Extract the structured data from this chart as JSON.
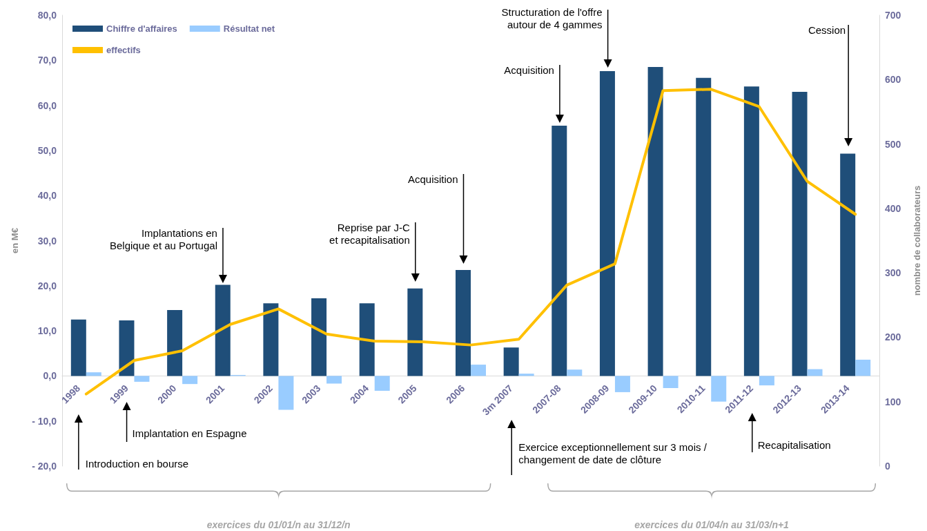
{
  "chart_data": {
    "type": "bar",
    "categories": [
      "1998",
      "1999",
      "2000",
      "2001",
      "2002",
      "2003",
      "2004",
      "2005",
      "2006",
      "3m 2007",
      "2007-08",
      "2008-09",
      "2009-10",
      "2010-11",
      "2011-12",
      "2012-13",
      "2013-14"
    ],
    "series": [
      {
        "name": "Chiffre d'affaires",
        "color": "#1f4e79",
        "values": [
          12.5,
          12.3,
          14.6,
          20.2,
          16.1,
          17.2,
          16.1,
          19.4,
          23.5,
          6.3,
          55.5,
          67.6,
          68.5,
          66.1,
          64.2,
          63.0,
          49.3
        ]
      },
      {
        "name": "Résultat net",
        "color": "#99ccff",
        "values": [
          0.8,
          -1.3,
          -1.8,
          0.2,
          -7.5,
          -1.7,
          -3.3,
          0,
          2.5,
          0.5,
          1.4,
          -3.6,
          -2.7,
          -5.7,
          -2.1,
          1.5,
          3.6
        ]
      },
      {
        "name": "effectifs",
        "type": "line",
        "axis": "y2",
        "color": "#ffc000",
        "values": [
          112,
          164,
          179,
          220,
          244,
          205,
          194,
          193,
          188,
          197,
          281,
          314,
          583,
          585,
          558,
          442,
          391
        ]
      }
    ],
    "ylabel": "en M€",
    "y2label": "nombre de collaborateurs",
    "ylim": [
      -20,
      80
    ],
    "yticks": [
      {
        "value": -20,
        "label": "- 20,0"
      },
      {
        "value": -10,
        "label": "- 10,0"
      },
      {
        "value": 0,
        "label": "0,0"
      },
      {
        "value": 10,
        "label": "10,0"
      },
      {
        "value": 20,
        "label": "20,0"
      },
      {
        "value": 30,
        "label": "30,0"
      },
      {
        "value": 40,
        "label": "40,0"
      },
      {
        "value": 50,
        "label": "50,0"
      },
      {
        "value": 60,
        "label": "60,0"
      },
      {
        "value": 70,
        "label": "70,0"
      },
      {
        "value": 80,
        "label": "80,0"
      }
    ],
    "y2lim": [
      0,
      700
    ],
    "y2ticks": [
      0,
      100,
      200,
      300,
      400,
      500,
      600,
      700
    ],
    "annotations": [
      "Introduction en bourse",
      "Implantation en Espagne",
      "Implantations en\nBelgique et au Portugal",
      "Reprise par J-C\net recapitalisation",
      "Acquisition",
      "Acquisition",
      "Structuration de l'offre\nautour de 4 gammes",
      "Cession",
      "Exercice exceptionnellement sur 3 mois /\nchangement de date de clôture",
      "Recapitalisation",
      "exercices du 01/01/n au 31/12/n",
      "exercices du 01/04/n au 31/03/n+1"
    ],
    "grid": false,
    "legend": "top left",
    "marker": "none",
    "line_style": "solid"
  }
}
